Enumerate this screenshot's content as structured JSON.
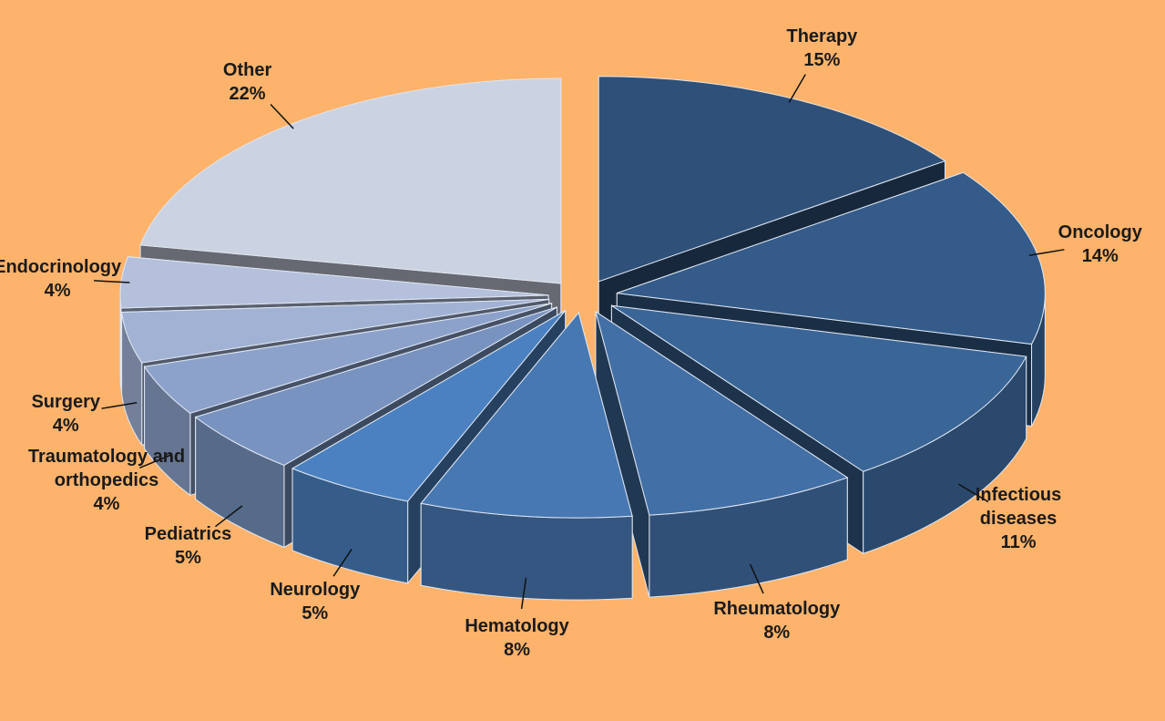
{
  "chart_data": {
    "type": "pie3d",
    "categories": [
      "Therapy",
      "Oncology",
      "Infectious diseases",
      "Rheumatology",
      "Hematology",
      "Neurology",
      "Pediatrics",
      "Traumatology and orthopedics",
      "Surgery",
      "Endocrinology",
      "Other"
    ],
    "values": [
      15,
      14,
      11,
      8,
      8,
      5,
      5,
      4,
      4,
      4,
      22
    ],
    "value_labels": [
      "15%",
      "14%",
      "11%",
      "8%",
      "8%",
      "5%",
      "5%",
      "4%",
      "4%",
      "4%",
      "22%"
    ],
    "colors": [
      "#2f5078",
      "#345b89",
      "#3a6597",
      "#426fa6",
      "#4878b2",
      "#4b81c0",
      "#7893c0",
      "#8ca2cb",
      "#a1b2d4",
      "#b4c0dc",
      "#cbd2e1"
    ]
  }
}
